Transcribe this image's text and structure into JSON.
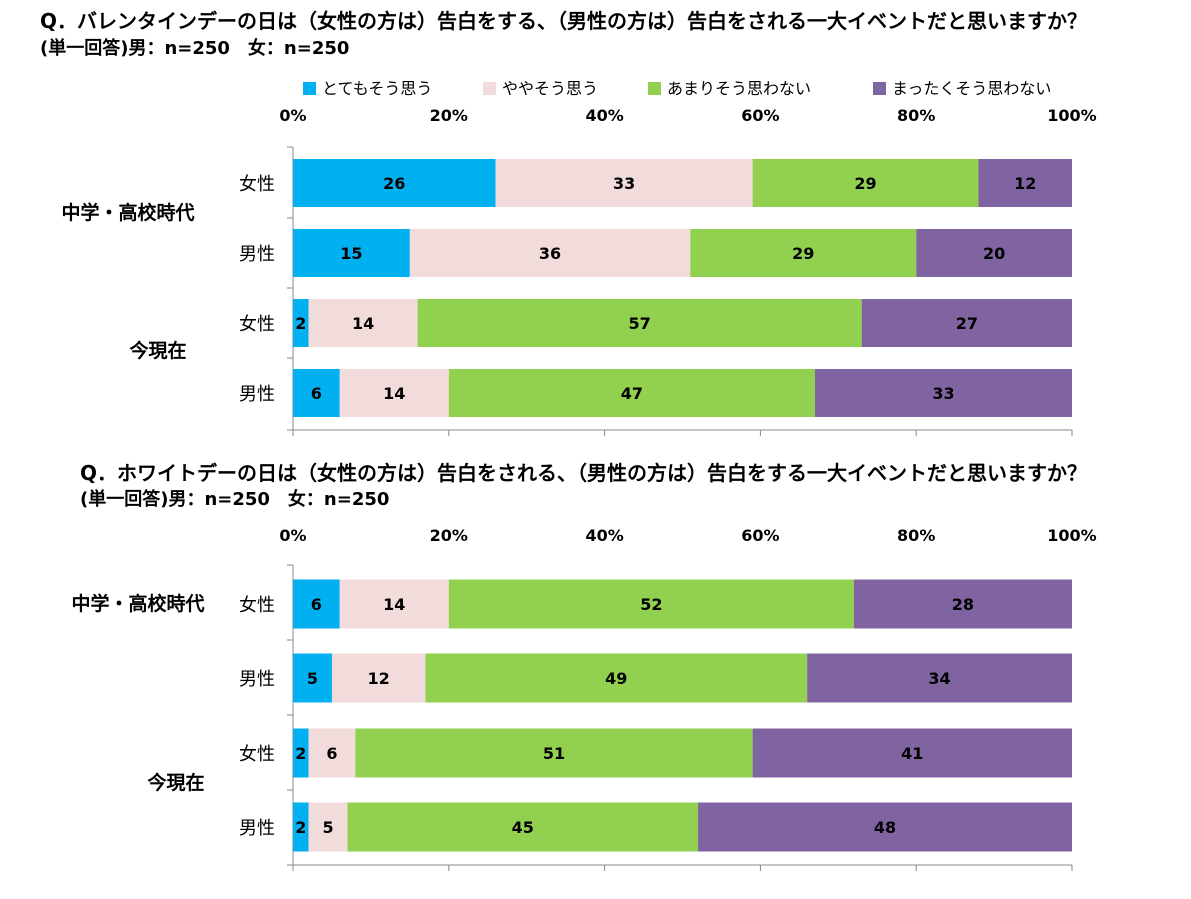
{
  "chart_data": [
    {
      "type": "bar",
      "orientation": "horizontal",
      "stacked": true,
      "title": "Q．バレンタインデーの日は（女性の方は）告白をする、（男性の方は）告白をされる一大イベントだと思いますか？",
      "subtitle": "(単一回答)男：n=250　女：n=250",
      "xlim": [
        0,
        100
      ],
      "x_ticks": [
        "0%",
        "20%",
        "40%",
        "60%",
        "80%",
        "100%"
      ],
      "legend_position": "top",
      "groups": [
        {
          "label": "中学・高校時代",
          "rows": [
            "女性",
            "男性"
          ]
        },
        {
          "label": "今現在",
          "rows": [
            "女性",
            "男性"
          ]
        }
      ],
      "categories": [
        "女性",
        "男性",
        "女性",
        "男性"
      ],
      "series": [
        {
          "name": "とてもそう思う",
          "color": "#00B0F0",
          "values": [
            26,
            15,
            2,
            6
          ]
        },
        {
          "name": "ややそう思う",
          "color": "#F2DCDB",
          "values": [
            33,
            36,
            14,
            14
          ]
        },
        {
          "name": "あまりそう思わない",
          "color": "#92D050",
          "values": [
            29,
            29,
            57,
            47
          ]
        },
        {
          "name": "まったくそう思わない",
          "color": "#8064A2",
          "values": [
            12,
            20,
            27,
            33
          ]
        }
      ]
    },
    {
      "type": "bar",
      "orientation": "horizontal",
      "stacked": true,
      "title": "Q．ホワイトデーの日は（女性の方は）告白をされる、（男性の方は）告白をする一大イベントだと思いますか？",
      "subtitle": "(単一回答)男：n=250　女：n=250",
      "xlim": [
        0,
        100
      ],
      "x_ticks": [
        "0%",
        "20%",
        "40%",
        "60%",
        "80%",
        "100%"
      ],
      "groups": [
        {
          "label": "中学・高校時代",
          "rows": [
            "女性",
            "男性"
          ]
        },
        {
          "label": "今現在",
          "rows": [
            "女性",
            "男性"
          ]
        }
      ],
      "categories": [
        "女性",
        "男性",
        "女性",
        "男性"
      ],
      "series": [
        {
          "name": "とてもそう思う",
          "color": "#00B0F0",
          "values": [
            6,
            5,
            2,
            2
          ]
        },
        {
          "name": "ややそう思う",
          "color": "#F2DCDB",
          "values": [
            14,
            12,
            6,
            5
          ]
        },
        {
          "name": "あまりそう思わない",
          "color": "#92D050",
          "values": [
            52,
            49,
            51,
            45
          ]
        },
        {
          "name": "まったくそう思わない",
          "color": "#8064A2",
          "values": [
            28,
            34,
            41,
            48
          ]
        }
      ]
    }
  ]
}
